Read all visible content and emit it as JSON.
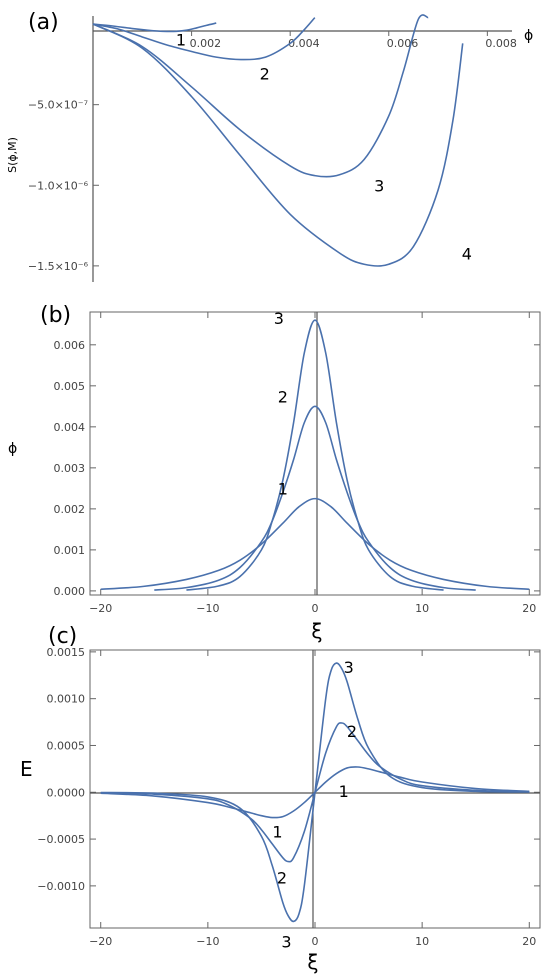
{
  "colors": {
    "curve": "#4a71ad",
    "axis": "#555555"
  },
  "chart_data": [
    {
      "type": "line",
      "panel_label": "(a)",
      "xlabel": "ϕ",
      "ylabel": "S(ϕ,M)",
      "xlim": [
        0,
        0.0085
      ],
      "ylim": [
        -1.6e-06,
        5e-08
      ],
      "xticks": [
        {
          "v": 0.002,
          "label": "0.002"
        },
        {
          "v": 0.004,
          "label": "0.004"
        },
        {
          "v": 0.006,
          "label": "0.006"
        },
        {
          "v": 0.008,
          "label": "0.008"
        }
      ],
      "yticks": [
        {
          "v": -5e-07,
          "label": "−5.0×10⁻⁷"
        },
        {
          "v": -1e-06,
          "label": "−1.0×10⁻⁶"
        },
        {
          "v": -1.5e-06,
          "label": "−1.5×10⁻⁶"
        }
      ],
      "series": [
        {
          "label": "1",
          "x": [
            0,
            0.0004,
            0.0008,
            0.0011,
            0.0013,
            0.0015,
            0.0017,
            0.0019,
            0.0021,
            0.0023,
            0.0025
          ],
          "y": [
            0,
            -1.2e-08,
            -2.8e-08,
            -3.8e-08,
            -4.3e-08,
            -4.6e-08,
            -4.5e-08,
            -3.8e-08,
            -2.4e-08,
            -8e-09,
            6e-09
          ]
        },
        {
          "label": "2",
          "x": [
            0,
            0.0005,
            0.001,
            0.0015,
            0.002,
            0.0025,
            0.003,
            0.0035,
            0.004,
            0.0043,
            0.0045
          ],
          "y": [
            0,
            -3e-08,
            -8e-08,
            -1.3e-07,
            -1.7e-07,
            -2.05e-07,
            -2.2e-07,
            -2.05e-07,
            -1.2e-07,
            -3e-08,
            4e-08
          ]
        },
        {
          "label": "3",
          "x": [
            0,
            0.001,
            0.002,
            0.003,
            0.004,
            0.0045,
            0.005,
            0.0055,
            0.006,
            0.0063,
            0.0066,
            0.0068
          ],
          "y": [
            0,
            -1.4e-07,
            -3.9e-07,
            -6.6e-07,
            -8.8e-07,
            -9.4e-07,
            -9.35e-07,
            -8.4e-07,
            -5.7e-07,
            -2.9e-07,
            3e-08,
            4e-08
          ]
        },
        {
          "label": "4",
          "x": [
            0,
            0.001,
            0.002,
            0.003,
            0.004,
            0.005,
            0.0055,
            0.006,
            0.0065,
            0.007,
            0.0073,
            0.0075
          ],
          "y": [
            0,
            -1.5e-07,
            -4.5e-07,
            -8.2e-07,
            -1.18e-06,
            -1.42e-06,
            -1.49e-06,
            -1.49e-06,
            -1.38e-06,
            -1.03e-06,
            -6e-07,
            -1.2e-07
          ]
        }
      ]
    },
    {
      "type": "line",
      "panel_label": "(b)",
      "xlabel": "ξ",
      "ylabel": "ϕ",
      "xlim": [
        -21,
        21
      ],
      "ylim": [
        -0.0001,
        0.0068
      ],
      "xticks": [
        {
          "v": -20,
          "label": "−20"
        },
        {
          "v": -10,
          "label": "−10"
        },
        {
          "v": 0,
          "label": "0"
        },
        {
          "v": 10,
          "label": "10"
        },
        {
          "v": 20,
          "label": "20"
        }
      ],
      "yticks": [
        {
          "v": 0,
          "label": "0.000"
        },
        {
          "v": 0.001,
          "label": "0.001"
        },
        {
          "v": 0.002,
          "label": "0.002"
        },
        {
          "v": 0.003,
          "label": "0.003"
        },
        {
          "v": 0.004,
          "label": "0.004"
        },
        {
          "v": 0.005,
          "label": "0.005"
        },
        {
          "v": 0.006,
          "label": "0.006"
        }
      ],
      "series": [
        {
          "label": "1",
          "x": [
            -20,
            -16,
            -12,
            -9,
            -7,
            -5,
            -3,
            -1.5,
            0,
            1.5,
            3,
            5,
            7,
            9,
            12,
            16,
            20
          ],
          "y": [
            4e-05,
            0.00011,
            0.00028,
            0.0005,
            0.00075,
            0.00114,
            0.00165,
            0.00205,
            0.00225,
            0.00205,
            0.00165,
            0.00114,
            0.00075,
            0.0005,
            0.00028,
            0.00011,
            4e-05
          ]
        },
        {
          "label": "2",
          "x": [
            -15,
            -12,
            -9,
            -7,
            -5,
            -4,
            -3,
            -2,
            -1,
            0,
            1,
            2,
            3,
            4,
            5,
            7,
            9,
            12,
            15
          ],
          "y": [
            2e-05,
            8e-05,
            0.00026,
            0.00057,
            0.0012,
            0.0017,
            0.0024,
            0.0032,
            0.0041,
            0.0045,
            0.0041,
            0.0032,
            0.0024,
            0.0017,
            0.0012,
            0.00057,
            0.00026,
            8e-05,
            2e-05
          ]
        },
        {
          "label": "3",
          "x": [
            -12,
            -9,
            -7,
            -5,
            -4,
            -3,
            -2,
            -1,
            0,
            1,
            2,
            3,
            4,
            5,
            7,
            9,
            12
          ],
          "y": [
            2e-05,
            0.00012,
            0.00035,
            0.001,
            0.0017,
            0.0027,
            0.0041,
            0.0058,
            0.0066,
            0.0058,
            0.0041,
            0.0027,
            0.0017,
            0.001,
            0.00035,
            0.00012,
            2e-05
          ]
        }
      ]
    },
    {
      "type": "line",
      "panel_label": "(c)",
      "xlabel": "ξ",
      "ylabel": "E",
      "xlim": [
        -21,
        21
      ],
      "ylim": [
        -0.00145,
        0.00152
      ],
      "xticks": [
        {
          "v": -20,
          "label": "−20"
        },
        {
          "v": -10,
          "label": "−10"
        },
        {
          "v": 0,
          "label": "0"
        },
        {
          "v": 10,
          "label": "10"
        },
        {
          "v": 20,
          "label": "20"
        }
      ],
      "yticks": [
        {
          "v": 0.0015,
          "label": "0.0015"
        },
        {
          "v": 0.001,
          "label": "0.0010"
        },
        {
          "v": 0.0005,
          "label": "0.0005"
        },
        {
          "v": 0,
          "label": "0.0000"
        },
        {
          "v": -0.0005,
          "label": "−0.0005"
        },
        {
          "v": -0.001,
          "label": "−0.0010"
        }
      ],
      "series": [
        {
          "label": "1",
          "x": [
            -20,
            -15,
            -10,
            -8,
            -6,
            -5,
            -4,
            -3,
            -2,
            -1,
            0,
            1,
            2,
            3,
            4,
            5,
            6,
            8,
            10,
            15,
            20
          ],
          "y": [
            -1e-05,
            -4e-05,
            -0.00011,
            -0.00016,
            -0.00022,
            -0.00025,
            -0.00027,
            -0.00026,
            -0.0002,
            -0.00011,
            0,
            0.00011,
            0.0002,
            0.00026,
            0.00027,
            0.00025,
            0.00022,
            0.00016,
            0.00011,
            4e-05,
            1e-05
          ]
        },
        {
          "label": "2",
          "x": [
            -20,
            -15,
            -10,
            -8,
            -6,
            -5,
            -4,
            -3,
            -2.5,
            -2,
            -1,
            0,
            1,
            2,
            2.5,
            3,
            4,
            5,
            6,
            8,
            10,
            15,
            20
          ],
          "y": [
            -5e-06,
            -2e-05,
            -7e-05,
            -0.00014,
            -0.00028,
            -0.0004,
            -0.00055,
            -0.0007,
            -0.00074,
            -0.0007,
            -0.00042,
            0,
            0.00042,
            0.0007,
            0.00074,
            0.0007,
            0.00055,
            0.0004,
            0.00028,
            0.00014,
            7e-05,
            2e-05,
            5e-06
          ]
        },
        {
          "label": "3",
          "x": [
            -20,
            -15,
            -10,
            -7,
            -5,
            -4,
            -3,
            -2.5,
            -2,
            -1.5,
            -1,
            0,
            1,
            1.5,
            2,
            2.5,
            3,
            4,
            5,
            7,
            10,
            15,
            20
          ],
          "y": [
            -3e-06,
            -1e-05,
            -5e-05,
            -0.00017,
            -0.00047,
            -0.00078,
            -0.00118,
            -0.00132,
            -0.00138,
            -0.0013,
            -0.001,
            0,
            0.001,
            0.0013,
            0.00138,
            0.00132,
            0.00118,
            0.00078,
            0.00047,
            0.00017,
            5e-05,
            1e-05,
            3e-06
          ]
        }
      ]
    }
  ]
}
